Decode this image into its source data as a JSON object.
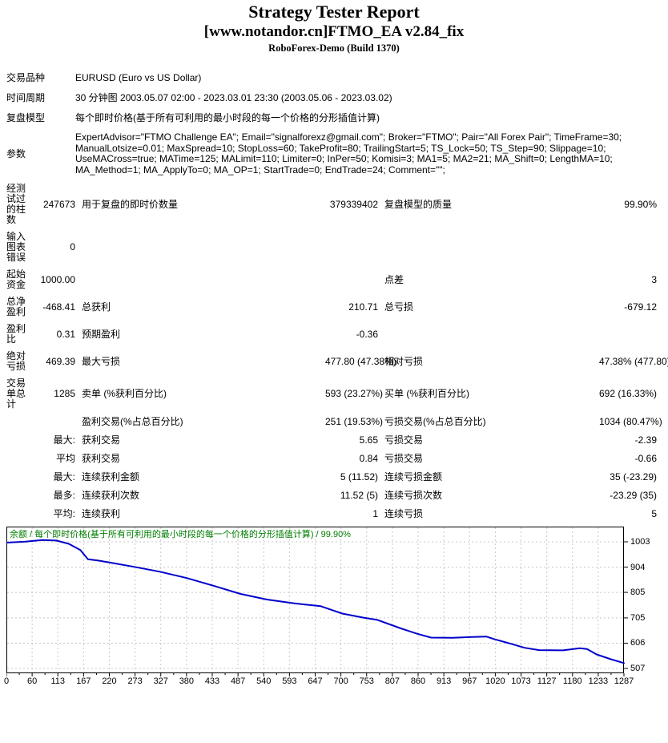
{
  "header": {
    "title": "Strategy Tester Report",
    "subtitle": "[www.notandor.cn]FTMO_EA v2.84_fix",
    "build": "RoboForex-Demo (Build 1370)"
  },
  "info_rows": [
    {
      "label": "交易品种",
      "value": "EURUSD (Euro vs US Dollar)"
    },
    {
      "label": "时间周期",
      "value": "30 分钟图 2003.05.07 02:00 - 2023.03.01 23:30 (2003.05.06 - 2023.03.02)"
    },
    {
      "label": "复盘模型",
      "value": "每个即时价格(基于所有可利用的最小时段的每一个价格的分形插值计算)"
    },
    {
      "label": "参数",
      "value": "ExpertAdvisor=\"FTMO Challenge EA\"; Email=\"signalforexz@gmail.com\"; Broker=\"FTMO\"; Pair=\"All Forex Pair\"; TimeFrame=30; ManualLotsize=0.01; MaxSpread=10; StopLoss=60; TakeProfit=80; TrailingStart=5; TS_Lock=50; TS_Step=90; Slippage=10; UseMACross=true; MATime=125; MALimit=110; Limiter=0; InPer=50; Komisi=3; MA1=5; MA2=21; MA_Shift=0; LengthMA=10; MA_Method=1; MA_ApplyTo=0; MA_OP=1; StartTrade=0; EndTrade=24; Comment=\"\";"
    }
  ],
  "stat_rows": [
    {
      "header": "经测试过的柱数",
      "v1": "247673",
      "l2": "用于复盘的即时价数量",
      "v2": "379339402",
      "l3": "复盘模型的质量",
      "v3": "99.90%"
    },
    {
      "header": "输入图表错误",
      "v1": "0",
      "l2": "",
      "v2": "",
      "l3": "",
      "v3": ""
    },
    {
      "header": "起始资金",
      "v1": "1000.00",
      "l2": "",
      "v2": "",
      "l3": "点差",
      "v3": "3"
    },
    {
      "header": "总净盈利",
      "v1": "-468.41",
      "l2": "总获利",
      "v2": "210.71",
      "l3": "总亏损",
      "v3": "-679.12"
    },
    {
      "header": "盈利比",
      "v1": "0.31",
      "l2": "预期盈利",
      "v2": "-0.36",
      "l3": "",
      "v3": ""
    },
    {
      "header": "绝对亏损",
      "v1": "469.39",
      "l2": "最大亏损",
      "v2": "477.80 (47.38%)",
      "l3": "相对亏损",
      "v3": "47.38% (477.80)"
    },
    {
      "header": "交易单总计",
      "v1": "1285",
      "l2": "卖单 (%获利百分比)",
      "v2": "593 (23.27%)",
      "l3": "买单 (%获利百分比)",
      "v3": "692 (16.33%)"
    },
    {
      "header": "",
      "v1": "",
      "l2": "盈利交易(%占总百分比)",
      "v2": "251 (19.53%)",
      "l3": "亏损交易(%占总百分比)",
      "v3": "1034 (80.47%)"
    },
    {
      "header": "",
      "v1": "最大:",
      "l2": "获利交易",
      "v2": "5.65",
      "l3": "亏损交易",
      "v3": "-2.39"
    },
    {
      "header": "",
      "v1": "平均",
      "l2": "获利交易",
      "v2": "0.84",
      "l3": "亏损交易",
      "v3": "-0.66"
    },
    {
      "header": "",
      "v1": "最大:",
      "l2": "连续获利金额",
      "v2": "5 (11.52)",
      "l3": "连续亏损金额",
      "v3": "35 (-23.29)"
    },
    {
      "header": "",
      "v1": "最多:",
      "l2": "连续获利次数",
      "v2": "11.52 (5)",
      "l3": "连续亏损次数",
      "v3": "-23.29 (35)"
    },
    {
      "header": "",
      "v1": "平均:",
      "l2": "连续获利",
      "v2": "1",
      "l3": "连续亏损",
      "v3": "5"
    }
  ],
  "chart_data": {
    "type": "line",
    "title": "余额 / 每个即时价格(基于所有可利用的最小时段的每一个价格的分形插值计算) / 99.90%",
    "xlabel": "",
    "ylabel": "",
    "xlim": [
      0,
      1287
    ],
    "ylim": [
      507,
      1003
    ],
    "grid": true,
    "legend_position": "none",
    "x_ticks": [
      0,
      60,
      113,
      167,
      220,
      273,
      327,
      380,
      433,
      487,
      540,
      593,
      647,
      700,
      753,
      807,
      860,
      913,
      967,
      1020,
      1073,
      1127,
      1180,
      1233,
      1287
    ],
    "y_ticks": [
      1003,
      904,
      805,
      705,
      606,
      507
    ],
    "colors": {
      "line": "#0000CC",
      "title": "#007D00",
      "grid": "#C8C8C8",
      "border": "#000000"
    },
    "series": [
      {
        "name": "余额",
        "points": [
          [
            0,
            1000
          ],
          [
            40,
            1004
          ],
          [
            75,
            1010
          ],
          [
            104,
            1008
          ],
          [
            130,
            995
          ],
          [
            154,
            971
          ],
          [
            170,
            935
          ],
          [
            190,
            930
          ],
          [
            210,
            924
          ],
          [
            266,
            905
          ],
          [
            320,
            886
          ],
          [
            376,
            861
          ],
          [
            433,
            830
          ],
          [
            488,
            799
          ],
          [
            543,
            777
          ],
          [
            600,
            762
          ],
          [
            655,
            751
          ],
          [
            700,
            722
          ],
          [
            744,
            706
          ],
          [
            772,
            698
          ],
          [
            822,
            664
          ],
          [
            856,
            643
          ],
          [
            885,
            628
          ],
          [
            930,
            627
          ],
          [
            970,
            630
          ],
          [
            1000,
            632
          ],
          [
            1018,
            621
          ],
          [
            1045,
            607
          ],
          [
            1080,
            588
          ],
          [
            1110,
            579
          ],
          [
            1160,
            578
          ],
          [
            1195,
            586
          ],
          [
            1210,
            583
          ],
          [
            1230,
            562
          ],
          [
            1260,
            543
          ],
          [
            1287,
            528
          ]
        ]
      }
    ]
  }
}
